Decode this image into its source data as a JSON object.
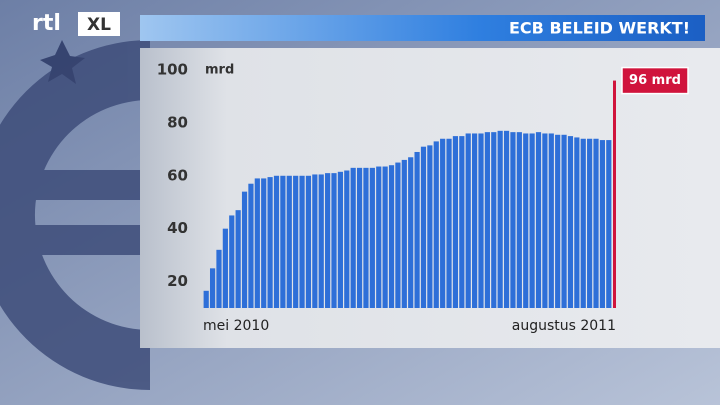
{
  "logo": [
    "rtl",
    "XL"
  ],
  "chart_data": {
    "type": "bar",
    "title": "ECB BELEID WERKT!",
    "y_unit": "mrd",
    "categories": [
      "mei 2010",
      null,
      null,
      null,
      null,
      null,
      null,
      null,
      null,
      null,
      null,
      null,
      null,
      null,
      null,
      null,
      null,
      null,
      null,
      null,
      null,
      null,
      null,
      null,
      null,
      null,
      null,
      null,
      null,
      null,
      null,
      null,
      null,
      null,
      null,
      null,
      null,
      null,
      null,
      null,
      null,
      null,
      null,
      null,
      null,
      null,
      null,
      null,
      null,
      null,
      null,
      null,
      null,
      null,
      null,
      null,
      null,
      null,
      null,
      null,
      null,
      null,
      null,
      null,
      "augustus 2011"
    ],
    "values": [
      16.5,
      25,
      32,
      40,
      45,
      47,
      54,
      57,
      59,
      59,
      59.5,
      60,
      60,
      60,
      60,
      60,
      60,
      60.5,
      60.5,
      61,
      61,
      61.5,
      62,
      63,
      63,
      63,
      63,
      63.5,
      63.5,
      64,
      65,
      66,
      67,
      69,
      71,
      71.5,
      73,
      74,
      74,
      75,
      75,
      76,
      76,
      76,
      76.5,
      76.5,
      77,
      77,
      76.5,
      76.5,
      76,
      76,
      76.5,
      76,
      76,
      75.5,
      75.5,
      75,
      74.5,
      74,
      74,
      74,
      73.5,
      73.5,
      96
    ],
    "value_labels": [
      null,
      null,
      null,
      null,
      null,
      null,
      null,
      null,
      null,
      null,
      null,
      null,
      null,
      null,
      null,
      null,
      null,
      null,
      null,
      null,
      null,
      null,
      null,
      null,
      null,
      null,
      null,
      null,
      null,
      null,
      null,
      null,
      null,
      null,
      null,
      null,
      null,
      null,
      null,
      null,
      null,
      null,
      null,
      null,
      null,
      null,
      null,
      null,
      null,
      null,
      null,
      null,
      null,
      null,
      null,
      null,
      null,
      null,
      null,
      null,
      null,
      null,
      null,
      null,
      "96 mrd"
    ],
    "color": "#2e6fd8",
    "highlight_color": "#d0143c",
    "ylim": [
      10,
      100
    ],
    "yticks": [
      20,
      40,
      60,
      80,
      100
    ],
    "grid": false
  }
}
